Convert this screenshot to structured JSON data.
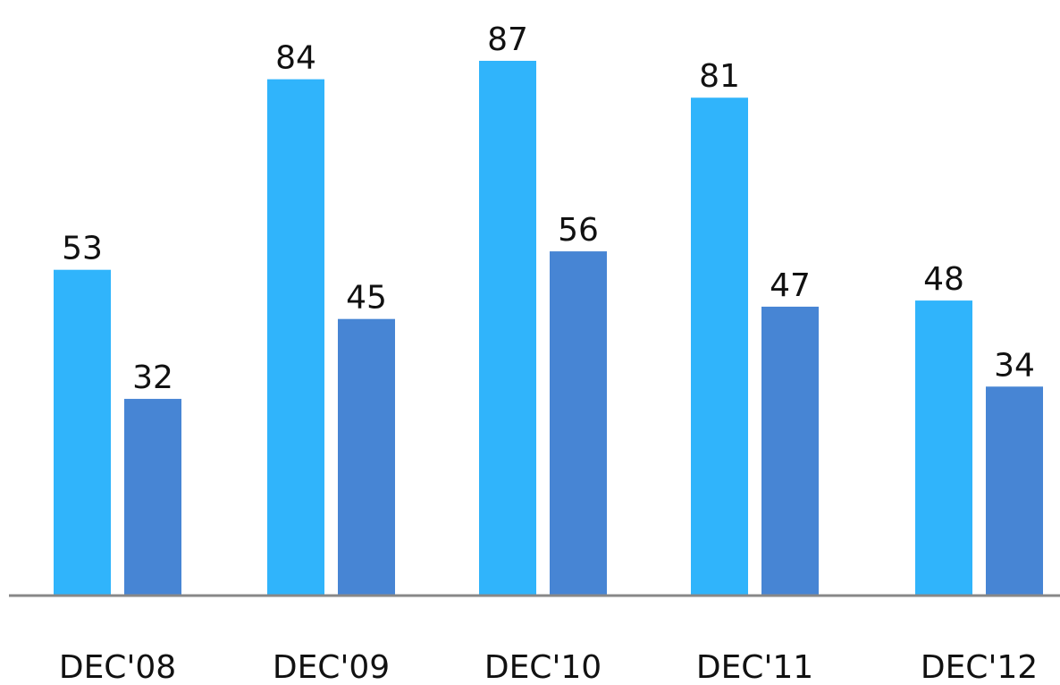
{
  "chart_data": {
    "type": "bar",
    "title": "",
    "xlabel": "",
    "ylabel": "",
    "categories": [
      "DEC'08",
      "DEC'09",
      "DEC'10",
      "DEC'11",
      "DEC'12"
    ],
    "series": [
      {
        "values": [
          53,
          84,
          87,
          81,
          48
        ],
        "color": "#30b4fb"
      },
      {
        "values": [
          32,
          45,
          56,
          47,
          34
        ],
        "color": "#4785d4"
      }
    ],
    "ylim": [
      0,
      87
    ],
    "grid": false,
    "legend": "none",
    "axis_color": "#888888"
  }
}
